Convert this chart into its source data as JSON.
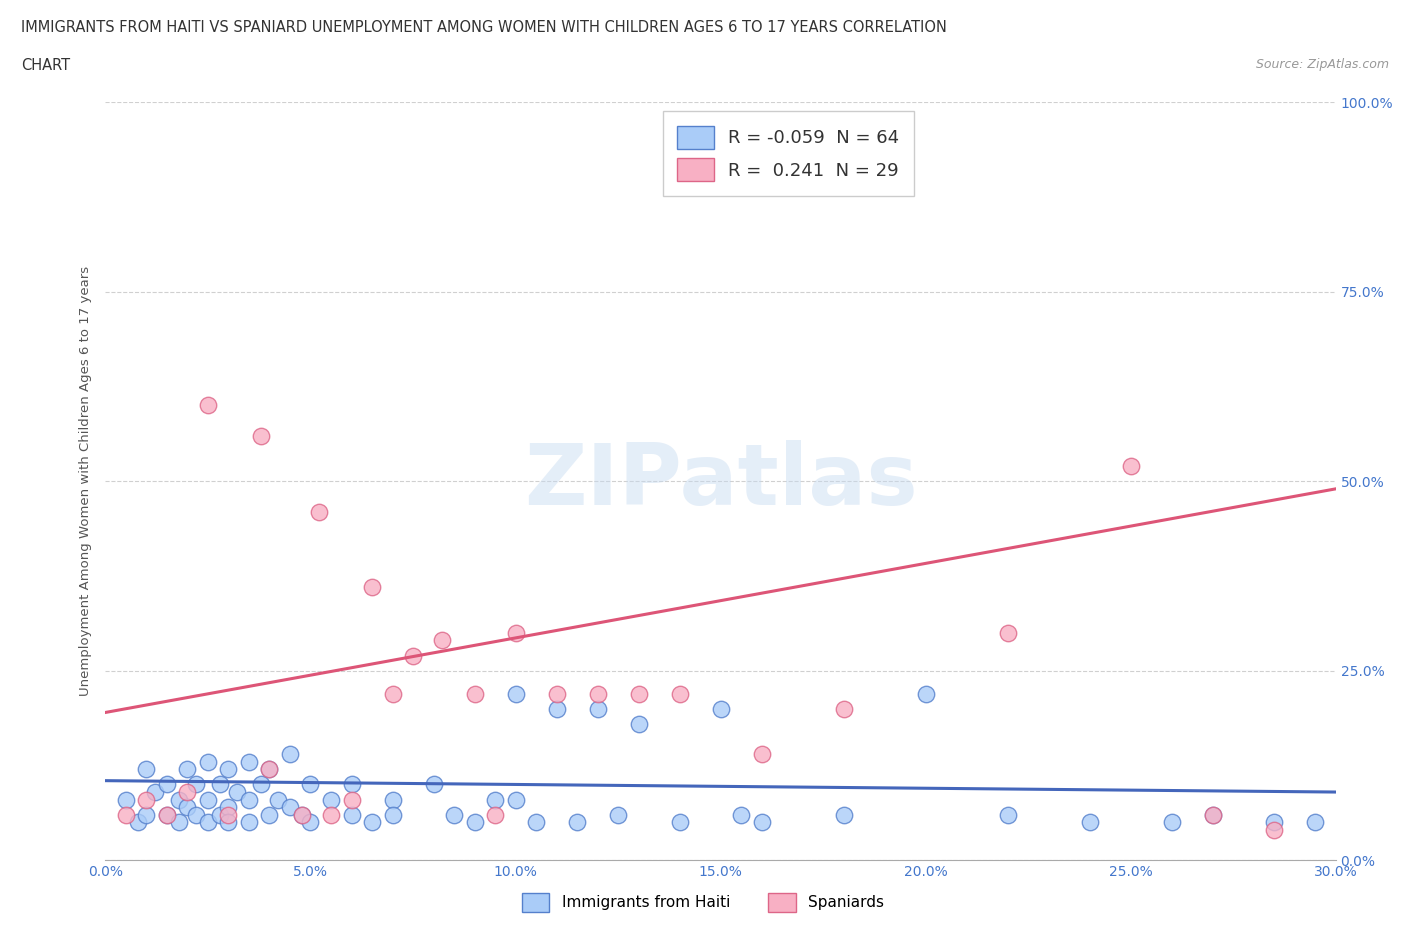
{
  "title_line1": "IMMIGRANTS FROM HAITI VS SPANIARD UNEMPLOYMENT AMONG WOMEN WITH CHILDREN AGES 6 TO 17 YEARS CORRELATION",
  "title_line2": "CHART",
  "source": "Source: ZipAtlas.com",
  "ylabel": "Unemployment Among Women with Children Ages 6 to 17 years",
  "xlim": [
    0.0,
    0.3
  ],
  "ylim": [
    0.0,
    1.0
  ],
  "xticks": [
    0.0,
    0.05,
    0.1,
    0.15,
    0.2,
    0.25,
    0.3
  ],
  "yticks": [
    0.0,
    0.25,
    0.5,
    0.75,
    1.0
  ],
  "xtick_labels": [
    "0.0%",
    "5.0%",
    "10.0%",
    "15.0%",
    "20.0%",
    "25.0%",
    "30.0%"
  ],
  "ytick_labels": [
    "0.0%",
    "25.0%",
    "50.0%",
    "75.0%",
    "100.0%"
  ],
  "haiti_color": "#aaccf8",
  "spain_color": "#f8b0c4",
  "haiti_edge_color": "#5580cc",
  "spain_edge_color": "#dd6688",
  "haiti_line_color": "#4466bb",
  "spain_line_color": "#dd5577",
  "haiti_R": -0.059,
  "haiti_N": 64,
  "spain_R": 0.241,
  "spain_N": 29,
  "watermark": "ZIPatlas",
  "legend_label_haiti": "Immigrants from Haiti",
  "legend_label_spain": "Spaniards",
  "axis_tick_color": "#4477cc",
  "haiti_scatter_x": [
    0.005,
    0.008,
    0.01,
    0.01,
    0.012,
    0.015,
    0.015,
    0.018,
    0.018,
    0.02,
    0.02,
    0.022,
    0.022,
    0.025,
    0.025,
    0.025,
    0.028,
    0.028,
    0.03,
    0.03,
    0.03,
    0.032,
    0.035,
    0.035,
    0.035,
    0.038,
    0.04,
    0.04,
    0.042,
    0.045,
    0.045,
    0.048,
    0.05,
    0.05,
    0.055,
    0.06,
    0.06,
    0.065,
    0.07,
    0.07,
    0.08,
    0.085,
    0.09,
    0.095,
    0.1,
    0.1,
    0.105,
    0.11,
    0.115,
    0.12,
    0.125,
    0.13,
    0.14,
    0.15,
    0.155,
    0.16,
    0.18,
    0.2,
    0.22,
    0.24,
    0.26,
    0.27,
    0.285,
    0.295
  ],
  "haiti_scatter_y": [
    0.08,
    0.05,
    0.12,
    0.06,
    0.09,
    0.1,
    0.06,
    0.08,
    0.05,
    0.12,
    0.07,
    0.1,
    0.06,
    0.13,
    0.08,
    0.05,
    0.1,
    0.06,
    0.12,
    0.07,
    0.05,
    0.09,
    0.13,
    0.08,
    0.05,
    0.1,
    0.12,
    0.06,
    0.08,
    0.14,
    0.07,
    0.06,
    0.1,
    0.05,
    0.08,
    0.06,
    0.1,
    0.05,
    0.08,
    0.06,
    0.1,
    0.06,
    0.05,
    0.08,
    0.22,
    0.08,
    0.05,
    0.2,
    0.05,
    0.2,
    0.06,
    0.18,
    0.05,
    0.2,
    0.06,
    0.05,
    0.06,
    0.22,
    0.06,
    0.05,
    0.05,
    0.06,
    0.05,
    0.05
  ],
  "spain_scatter_x": [
    0.005,
    0.01,
    0.015,
    0.02,
    0.025,
    0.03,
    0.038,
    0.04,
    0.048,
    0.052,
    0.055,
    0.06,
    0.065,
    0.07,
    0.075,
    0.082,
    0.09,
    0.095,
    0.1,
    0.11,
    0.12,
    0.13,
    0.14,
    0.16,
    0.18,
    0.22,
    0.25,
    0.27,
    0.285
  ],
  "spain_scatter_y": [
    0.06,
    0.08,
    0.06,
    0.09,
    0.6,
    0.06,
    0.56,
    0.12,
    0.06,
    0.46,
    0.06,
    0.08,
    0.36,
    0.22,
    0.27,
    0.29,
    0.22,
    0.06,
    0.3,
    0.22,
    0.22,
    0.22,
    0.22,
    0.14,
    0.2,
    0.3,
    0.52,
    0.06,
    0.04
  ],
  "haiti_trend_y0": 0.105,
  "haiti_trend_y1": 0.09,
  "spain_trend_y0": 0.195,
  "spain_trend_y1": 0.49
}
